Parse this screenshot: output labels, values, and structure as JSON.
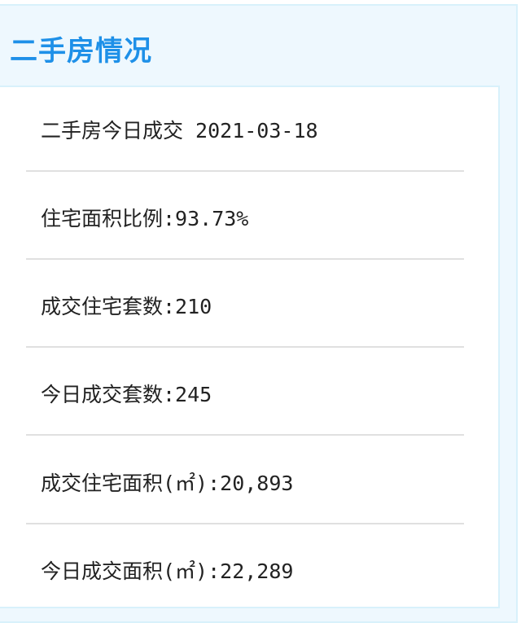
{
  "panel": {
    "title": "二手房情况"
  },
  "rows": [
    {
      "text": "二手房今日成交 2021-03-18"
    },
    {
      "text": "住宅面积比例:93.73%"
    },
    {
      "text": "成交住宅套数:210"
    },
    {
      "text": "今日成交套数:245"
    },
    {
      "text": "成交住宅面积(㎡):20,893"
    },
    {
      "text": "今日成交面积(㎡):22,289"
    }
  ],
  "colors": {
    "title": "#1e90e8",
    "panel_bg": "#eef8fe",
    "border": "#d8f1fb"
  }
}
